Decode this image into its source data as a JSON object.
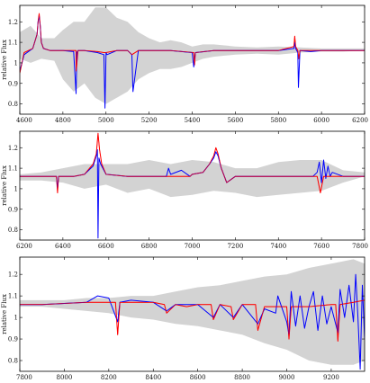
{
  "chart_data": [
    {
      "type": "line",
      "xlim": [
        4600,
        6200
      ],
      "ylim": [
        0.75,
        1.28
      ],
      "xticks": [
        "4600",
        "4800",
        "5000",
        "5200",
        "5400",
        "5600",
        "5800",
        "6000",
        "6200"
      ],
      "yticks": [
        "0.8",
        "0.9",
        "1",
        "1.1",
        "1.2"
      ],
      "ylabel": "relative Flux",
      "grid": false,
      "colors": {
        "observed": "#0000ff",
        "model": "#ff0000",
        "band": "#d3d3d3"
      },
      "band": {
        "x": [
          4600,
          4650,
          4700,
          4760,
          4800,
          4850,
          4900,
          4950,
          5000,
          5050,
          5100,
          5150,
          5200,
          5250,
          5300,
          5350,
          5400,
          5450,
          5500,
          5550,
          5600,
          5700,
          5800,
          5900,
          6000,
          6100,
          6200
        ],
        "lower": [
          1.02,
          1.0,
          1.02,
          1.01,
          0.92,
          0.86,
          0.9,
          0.83,
          0.8,
          0.83,
          0.86,
          0.92,
          0.95,
          0.97,
          0.97,
          0.98,
          1.0,
          1.02,
          1.03,
          1.035,
          1.04,
          1.045,
          1.04,
          1.05,
          1.055,
          1.055,
          1.06
        ],
        "upper": [
          1.15,
          1.18,
          1.12,
          1.12,
          1.16,
          1.2,
          1.2,
          1.27,
          1.27,
          1.22,
          1.2,
          1.15,
          1.12,
          1.1,
          1.11,
          1.1,
          1.08,
          1.09,
          1.09,
          1.085,
          1.08,
          1.075,
          1.08,
          1.075,
          1.07,
          1.07,
          1.07
        ]
      },
      "model": {
        "x": [
          4600,
          4620,
          4660,
          4680,
          4685,
          4690,
          4695,
          4700,
          4710,
          4740,
          4800,
          4861,
          4862,
          4870,
          4900,
          4960,
          4990,
          5000,
          5050,
          5100,
          5120,
          5150,
          5200,
          5300,
          5407,
          5411,
          5415,
          5500,
          5600,
          5700,
          5800,
          5872,
          5876,
          5880,
          5890,
          5895,
          5900,
          6000,
          6100,
          6200
        ],
        "y": [
          0.95,
          1.05,
          1.07,
          1.14,
          1.2,
          1.24,
          1.18,
          1.1,
          1.07,
          1.06,
          1.06,
          1.06,
          0.96,
          1.06,
          1.06,
          1.055,
          1.05,
          1.05,
          1.06,
          1.06,
          1.04,
          1.06,
          1.06,
          1.06,
          1.05,
          0.99,
          1.05,
          1.06,
          1.06,
          1.06,
          1.06,
          1.08,
          1.13,
          1.08,
          1.06,
          1.02,
          1.06,
          1.06,
          1.06,
          1.06
        ]
      },
      "observed": {
        "x": [
          4600,
          4620,
          4660,
          4680,
          4685,
          4690,
          4695,
          4700,
          4710,
          4740,
          4800,
          4850,
          4861,
          4865,
          4870,
          4900,
          4960,
          4990,
          4995,
          5000,
          5005,
          5050,
          5100,
          5120,
          5125,
          5150,
          5200,
          5300,
          5400,
          5407,
          5411,
          5415,
          5500,
          5600,
          5700,
          5800,
          5872,
          5876,
          5880,
          5890,
          5893,
          5900,
          5950,
          6000,
          6100,
          6200
        ],
        "y": [
          0.96,
          1.04,
          1.07,
          1.14,
          1.2,
          1.23,
          1.18,
          1.1,
          1.07,
          1.06,
          1.06,
          1.055,
          0.85,
          1.05,
          1.06,
          1.06,
          1.05,
          1.04,
          0.78,
          1.05,
          1.04,
          1.06,
          1.06,
          1.04,
          0.86,
          1.06,
          1.06,
          1.06,
          1.05,
          0.98,
          1.02,
          1.05,
          1.06,
          1.06,
          1.06,
          1.06,
          1.07,
          1.1,
          1.07,
          1.05,
          0.88,
          1.06,
          1.055,
          1.06,
          1.06,
          1.06
        ]
      }
    },
    {
      "type": "line",
      "xlim": [
        6200,
        7800
      ],
      "ylim": [
        0.75,
        1.28
      ],
      "xticks": [
        "6200",
        "6400",
        "6600",
        "6800",
        "7000",
        "7200",
        "7400",
        "7600",
        "7800"
      ],
      "yticks": [
        "0.8",
        "0.9",
        "1",
        "1.1",
        "1.2"
      ],
      "ylabel": "relative Flux",
      "grid": false,
      "colors": {
        "observed": "#0000ff",
        "model": "#ff0000",
        "band": "#d3d3d3"
      },
      "band": {
        "x": [
          6200,
          6300,
          6400,
          6500,
          6600,
          6700,
          6800,
          6900,
          7000,
          7100,
          7200,
          7300,
          7400,
          7500,
          7600,
          7700,
          7800
        ],
        "lower": [
          1.04,
          1.04,
          1.03,
          1.0,
          1.02,
          0.98,
          1.0,
          0.96,
          0.97,
          0.99,
          0.98,
          0.96,
          0.97,
          0.98,
          0.99,
          1.03,
          1.06
        ],
        "upper": [
          1.07,
          1.08,
          1.1,
          1.12,
          1.12,
          1.12,
          1.14,
          1.12,
          1.14,
          1.13,
          1.1,
          1.1,
          1.13,
          1.14,
          1.14,
          1.09,
          1.08
        ]
      },
      "model": {
        "x": [
          6200,
          6300,
          6370,
          6375,
          6380,
          6450,
          6500,
          6540,
          6555,
          6563,
          6570,
          6580,
          6600,
          6700,
          6800,
          6900,
          6990,
          7000,
          7050,
          7080,
          7100,
          7110,
          7120,
          7135,
          7160,
          7200,
          7300,
          7400,
          7500,
          7580,
          7595,
          7610,
          7650,
          7700,
          7800
        ],
        "y": [
          1.06,
          1.06,
          1.06,
          0.98,
          1.06,
          1.06,
          1.07,
          1.12,
          1.17,
          1.27,
          1.19,
          1.12,
          1.07,
          1.06,
          1.06,
          1.06,
          1.06,
          1.07,
          1.08,
          1.12,
          1.16,
          1.2,
          1.17,
          1.1,
          1.03,
          1.06,
          1.06,
          1.06,
          1.06,
          1.06,
          0.98,
          1.06,
          1.06,
          1.06,
          1.06
        ]
      },
      "observed": {
        "x": [
          6200,
          6300,
          6370,
          6375,
          6380,
          6450,
          6500,
          6540,
          6555,
          6560,
          6563,
          6567,
          6575,
          6600,
          6700,
          6800,
          6880,
          6890,
          6900,
          6950,
          6990,
          7000,
          7050,
          7080,
          7100,
          7110,
          7120,
          7135,
          7160,
          7200,
          7300,
          7400,
          7500,
          7560,
          7580,
          7590,
          7600,
          7610,
          7620,
          7630,
          7640,
          7650,
          7700,
          7800
        ],
        "y": [
          1.06,
          1.06,
          1.06,
          1.0,
          1.06,
          1.06,
          1.07,
          1.11,
          1.16,
          1.19,
          0.76,
          1.15,
          1.12,
          1.07,
          1.06,
          1.06,
          1.06,
          1.1,
          1.07,
          1.09,
          1.06,
          1.07,
          1.08,
          1.12,
          1.15,
          1.18,
          1.16,
          1.1,
          1.03,
          1.06,
          1.06,
          1.06,
          1.06,
          1.06,
          1.08,
          1.13,
          1.03,
          1.14,
          1.05,
          1.11,
          1.06,
          1.08,
          1.06,
          1.06
        ]
      }
    },
    {
      "type": "line",
      "xlim": [
        7800,
        9350
      ],
      "ylim": [
        0.75,
        1.28
      ],
      "xticks": [
        "7800",
        "8000",
        "8200",
        "8400",
        "8600",
        "8800",
        "9000",
        "9200"
      ],
      "yticks": [
        "0.8",
        "0.9",
        "1",
        "1.1",
        "1.2"
      ],
      "ylabel": "relative Flux",
      "grid": false,
      "colors": {
        "observed": "#0000ff",
        "model": "#ff0000",
        "band": "#d3d3d3"
      },
      "band": {
        "x": [
          7800,
          7900,
          8000,
          8100,
          8200,
          8300,
          8400,
          8500,
          8600,
          8700,
          8800,
          8900,
          9000,
          9100,
          9200,
          9300,
          9350
        ],
        "lower": [
          1.05,
          1.05,
          1.04,
          1.03,
          1.02,
          1.0,
          0.99,
          0.97,
          0.96,
          0.94,
          0.92,
          0.88,
          0.85,
          0.8,
          0.78,
          0.78,
          0.8
        ],
        "upper": [
          1.08,
          1.08,
          1.08,
          1.09,
          1.09,
          1.1,
          1.1,
          1.12,
          1.14,
          1.15,
          1.17,
          1.19,
          1.2,
          1.23,
          1.25,
          1.27,
          1.25
        ]
      },
      "model": {
        "x": [
          7800,
          7900,
          8000,
          8100,
          8150,
          8200,
          8230,
          8240,
          8250,
          8300,
          8400,
          8450,
          8460,
          8500,
          8550,
          8600,
          8660,
          8670,
          8700,
          8750,
          8760,
          8800,
          8860,
          8870,
          8900,
          9000,
          9010,
          9020,
          9100,
          9200,
          9220,
          9230,
          9240,
          9300,
          9350
        ],
        "y": [
          1.06,
          1.06,
          1.065,
          1.07,
          1.07,
          1.07,
          1.07,
          0.92,
          1.07,
          1.07,
          1.07,
          1.06,
          1.02,
          1.06,
          1.05,
          1.06,
          1.06,
          0.99,
          1.06,
          1.05,
          0.99,
          1.06,
          1.06,
          0.94,
          1.05,
          1.05,
          0.9,
          1.05,
          1.05,
          1.06,
          1.06,
          0.89,
          1.06,
          1.07,
          1.08
        ]
      },
      "observed": {
        "x": [
          7800,
          7900,
          8000,
          8100,
          8150,
          8200,
          8240,
          8250,
          8300,
          8400,
          8460,
          8500,
          8600,
          8670,
          8700,
          8760,
          8800,
          8870,
          8900,
          8950,
          8960,
          9000,
          9010,
          9020,
          9040,
          9060,
          9080,
          9100,
          9120,
          9140,
          9160,
          9180,
          9200,
          9230,
          9240,
          9260,
          9280,
          9300,
          9310,
          9320,
          9330,
          9340,
          9350
        ],
        "y": [
          1.06,
          1.06,
          1.065,
          1.07,
          1.1,
          1.09,
          0.98,
          1.07,
          1.08,
          1.07,
          1.03,
          1.06,
          1.06,
          1.0,
          1.06,
          1.0,
          1.06,
          0.97,
          1.04,
          1.02,
          1.1,
          0.98,
          0.92,
          1.12,
          0.96,
          1.1,
          0.95,
          1.05,
          1.12,
          0.94,
          1.1,
          0.97,
          1.05,
          0.93,
          1.13,
          1.0,
          1.15,
          0.98,
          1.2,
          1.0,
          0.76,
          1.15,
          0.9
        ]
      }
    }
  ]
}
